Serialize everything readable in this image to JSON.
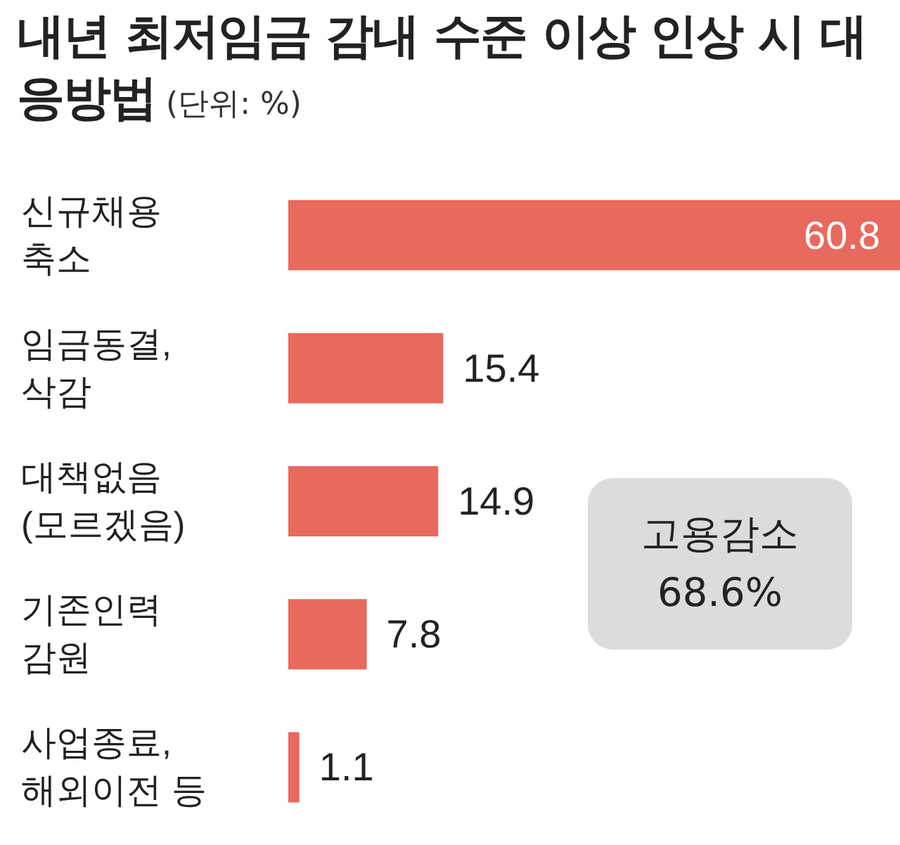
{
  "chart_data": {
    "type": "bar",
    "orientation": "horizontal",
    "title": "내년 최저임금 감내 수준 이상 인상 시 대응방법",
    "subtitle": "(단위: %)",
    "categories": [
      "신규채용\n축소",
      "임금동결,\n삭감",
      "대책없음\n(모르겠음)",
      "기존인력\n감원",
      "사업종료,\n해외이전 등"
    ],
    "values": [
      60.8,
      15.4,
      14.9,
      7.8,
      1.1
    ],
    "color": "#e8695d",
    "data_labels": true,
    "annotations": [
      "고용감소\n68.6%"
    ]
  }
}
